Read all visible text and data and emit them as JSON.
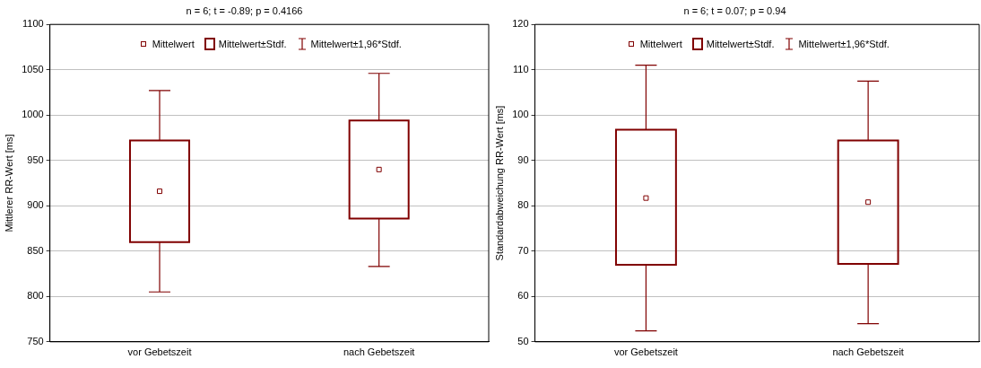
{
  "chart_data": [
    {
      "type": "box",
      "title": "n = 6; t = -0.89; p = 0.4166",
      "ylabel": "Mittlerer RR-Wert [ms]",
      "categories": [
        "vor Gebetszeit",
        "nach Gebetszeit"
      ],
      "ylim": [
        750,
        1100
      ],
      "yticks": [
        750,
        800,
        850,
        900,
        950,
        1000,
        1050,
        1100
      ],
      "grid": "y",
      "legend": "top",
      "annotations": [
        "Mittelwert",
        "Mittelwert±1,96*Stdf."
      ],
      "series": [
        {
          "name": "Mittelwert±Stdf.",
          "color": "#800000",
          "boxes": [
            {
              "low": 805,
              "q1": 860,
              "q3": 972,
              "high": 1027,
              "mean": 916
            },
            {
              "low": 833,
              "q1": 886,
              "q3": 994,
              "high": 1046,
              "mean": 940
            }
          ]
        }
      ]
    },
    {
      "type": "box",
      "title": "n = 6; t = 0.07; p = 0.94",
      "ylabel": "Standardabweichung RR-Wert [ms]",
      "categories": [
        "vor Gebetszeit",
        "nach Gebetszeit"
      ],
      "ylim": [
        50,
        120
      ],
      "yticks": [
        50,
        60,
        70,
        80,
        90,
        100,
        110,
        120
      ],
      "grid": "y",
      "legend": "top",
      "annotations": [
        "Mittelwert",
        "Mittelwert±1,96*Stdf."
      ],
      "series": [
        {
          "name": "Mittelwert±Stdf.",
          "color": "#800000",
          "boxes": [
            {
              "low": 52.4,
              "q1": 67,
              "q3": 96.8,
              "high": 111,
              "mean": 81.7
            },
            {
              "low": 54,
              "q1": 67.2,
              "q3": 94.4,
              "high": 107.5,
              "mean": 80.8
            }
          ]
        }
      ]
    }
  ]
}
